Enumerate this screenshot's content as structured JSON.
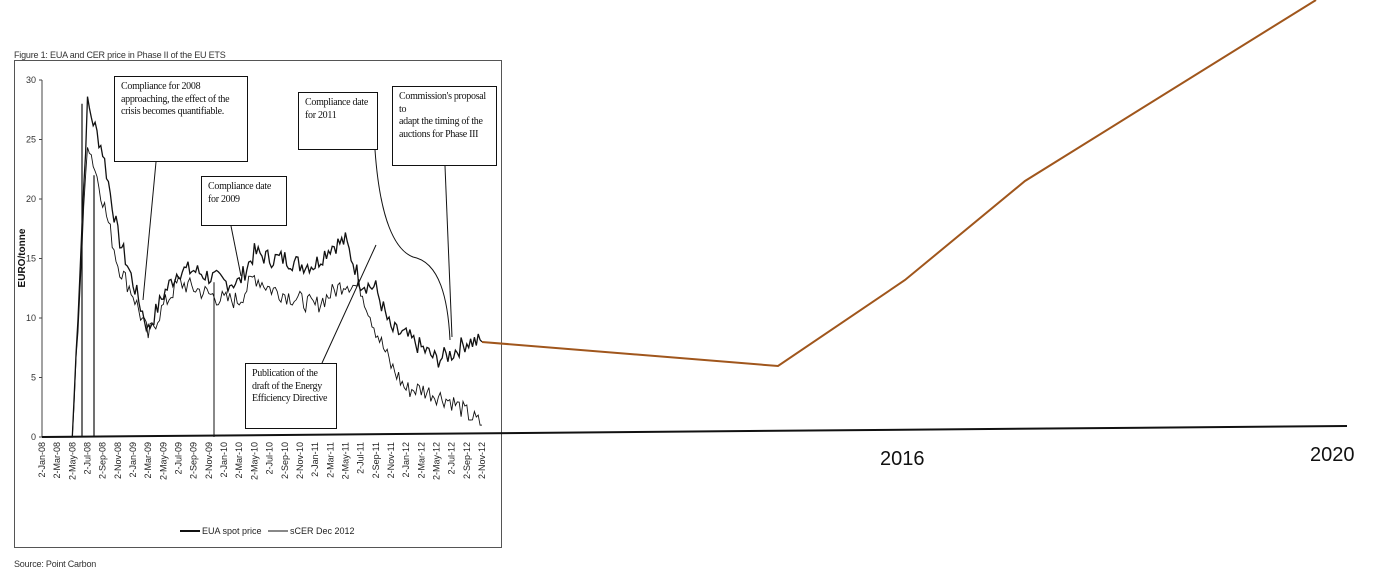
{
  "figure": {
    "title": "Figure 1: EUA and CER price in Phase II of the EU ETS",
    "source": "Source: Point Carbon"
  },
  "annotations": [
    {
      "id": "ann1",
      "lines": [
        "Compliance for 2008",
        "approaching, the effect of the",
        "crisis becomes quantifiable."
      ]
    },
    {
      "id": "ann2",
      "lines": [
        "Compliance date",
        "for 2009"
      ]
    },
    {
      "id": "ann3",
      "lines": [
        "Compliance date",
        "for 2011"
      ]
    },
    {
      "id": "ann4",
      "lines": [
        "Commission's proposal to",
        "adapt the timing of the",
        "auctions for Phase III"
      ]
    },
    {
      "id": "ann5",
      "lines": [
        "Publication of the",
        "draft of the Energy",
        "Efficiency Directive"
      ]
    }
  ],
  "colors": {
    "extension_line": "#a0561c",
    "price_line": "#111111"
  },
  "chart_data": [
    {
      "type": "line",
      "title": "Figure 1: EUA and CER price in Phase II of the EU ETS",
      "xlabel": "",
      "ylabel": "EURO/tonne",
      "ylim": [
        0,
        30
      ],
      "yticks": [
        "0",
        "5",
        "10",
        "15",
        "20",
        "25",
        "30"
      ],
      "categories": [
        "2-Jan-08",
        "2-Mar-08",
        "2-May-08",
        "2-Jul-08",
        "2-Sep-08",
        "2-Nov-08",
        "2-Jan-09",
        "2-Mar-09",
        "2-May-09",
        "2-Jul-09",
        "2-Sep-09",
        "2-Nov-09",
        "2-Jan-10",
        "2-Mar-10",
        "2-May-10",
        "2-Jul-10",
        "2-Sep-10",
        "2-Nov-10",
        "2-Jan-11",
        "2-Mar-11",
        "2-May-11",
        "2-Jul-11",
        "2-Sep-11",
        "2-Nov-11",
        "2-Jan-12",
        "2-Mar-12",
        "2-May-12",
        "2-Jul-12",
        "2-Sep-12",
        "2-Nov-12"
      ],
      "legend": "bottom",
      "series": [
        {
          "name": "EUA spot price",
          "values": [
            0,
            0,
            0,
            28,
            24,
            17,
            13,
            9,
            12,
            14,
            14,
            13.5,
            13,
            13,
            15.5,
            15,
            15,
            14.5,
            14.5,
            16,
            16.5,
            13,
            12.5,
            9,
            8.5,
            7.5,
            6.5,
            7,
            8,
            8
          ]
        },
        {
          "name": "sCER Dec 2012",
          "values": [
            0,
            0,
            0,
            25,
            20,
            14.5,
            12,
            8.5,
            11,
            13,
            12.5,
            12,
            11.5,
            11.5,
            13.5,
            12.5,
            12,
            11.5,
            11,
            12,
            13,
            12.5,
            9,
            6,
            4,
            4,
            3.5,
            3,
            2,
            1
          ]
        }
      ]
    },
    {
      "type": "line",
      "categories": [
        "2016",
        "2020"
      ],
      "series": []
    }
  ]
}
